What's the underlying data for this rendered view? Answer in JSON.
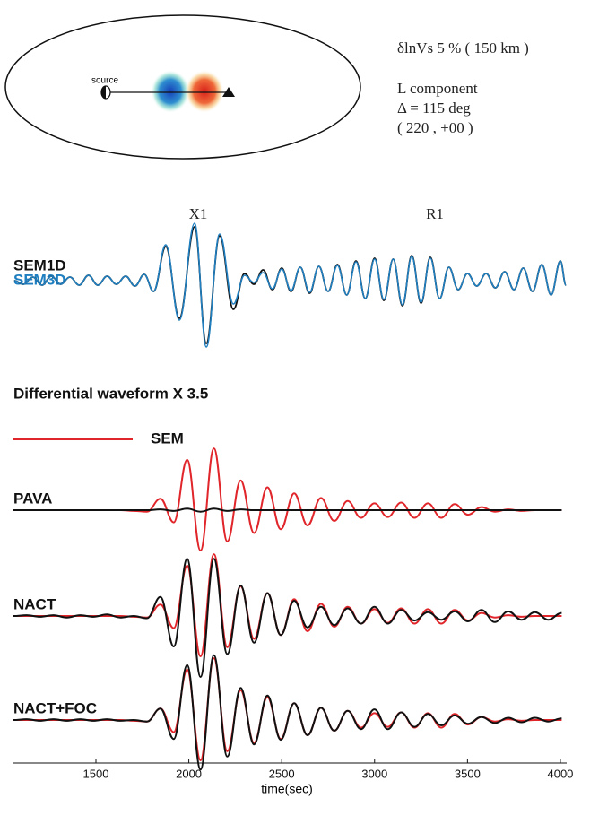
{
  "map": {
    "source_label": "source"
  },
  "annotations": {
    "model": "δlnVs 5 % ( 150 km )",
    "component": "L component",
    "distance": "Δ = 115 deg",
    "location": "( 220 , +00 )"
  },
  "chart_data": [
    {
      "type": "line",
      "phase_labels": [
        "X1",
        "R1"
      ],
      "xlim": [
        1056,
        4034
      ],
      "x": [
        1060,
        1110,
        1160,
        1210,
        1260,
        1310,
        1360,
        1410,
        1460,
        1510,
        1560,
        1610,
        1660,
        1710,
        1760,
        1810,
        1876,
        1949,
        2031,
        2094,
        2166,
        2240,
        2300,
        2350,
        2400,
        2450,
        2500,
        2550,
        2600,
        2650,
        2700,
        2750,
        2800,
        2850,
        2900,
        2950,
        3000,
        3050,
        3100,
        3150,
        3200,
        3250,
        3300,
        3350,
        3400,
        3450,
        3500,
        3550,
        3600,
        3650,
        3700,
        3750,
        3800,
        3850,
        3900,
        3950,
        4000,
        4030
      ],
      "series": [
        {
          "name": "SEM1D",
          "color": "#111111",
          "values": [
            0,
            -4,
            4,
            -5,
            5,
            -4,
            4,
            -5,
            6,
            -5,
            5,
            -4,
            5,
            -6,
            7,
            -12,
            38,
            -42,
            60,
            -70,
            50,
            -32,
            8,
            -4,
            12,
            -10,
            14,
            -12,
            15,
            -14,
            16,
            -12,
            18,
            -16,
            22,
            -20,
            25,
            -22,
            24,
            -28,
            28,
            -25,
            26,
            -20,
            15,
            -10,
            8,
            -6,
            8,
            -8,
            10,
            -10,
            14,
            -12,
            18,
            -16,
            22,
            -5
          ]
        },
        {
          "name": "SEM3D",
          "color": "#1f7fc0",
          "values": [
            0,
            -4,
            4,
            -5,
            5,
            -4,
            4,
            -5,
            6,
            -5,
            5,
            -4,
            5,
            -6,
            7,
            -12,
            40,
            -44,
            64,
            -74,
            52,
            -26,
            6,
            -2,
            9,
            -9,
            13,
            -11,
            15,
            -13,
            16,
            -12,
            17,
            -16,
            21,
            -20,
            24,
            -21,
            24,
            -27,
            27,
            -24,
            25,
            -20,
            15,
            -10,
            8,
            -6,
            8,
            -8,
            10,
            -10,
            14,
            -12,
            18,
            -16,
            22,
            -5
          ]
        }
      ]
    },
    {
      "type": "line",
      "title": "Differential waveform X 3.5",
      "xlabel": "time(sec)",
      "xlim": [
        1056,
        4034
      ],
      "xticks": [
        1500,
        2000,
        2500,
        3000,
        3500,
        4000
      ],
      "x": [
        1055,
        1127,
        1199,
        1271,
        1343,
        1415,
        1487,
        1559,
        1631,
        1703,
        1775,
        1847,
        1919,
        1991,
        2063,
        2135,
        2207,
        2279,
        2351,
        2423,
        2495,
        2567,
        2639,
        2711,
        2783,
        2855,
        2927,
        2999,
        3071,
        3143,
        3215,
        3287,
        3359,
        3431,
        3503,
        3575,
        3647,
        3719,
        3791,
        3863,
        3935,
        4007
      ],
      "series": [
        {
          "name": "SEM",
          "color": "#e0262b",
          "values": [
            0,
            0,
            0,
            0,
            0,
            0,
            0,
            0,
            0,
            -1,
            -2,
            15,
            -16,
            66,
            -53,
            81,
            -41,
            39,
            -30,
            30,
            -25,
            22,
            -20,
            16,
            -14,
            12,
            -10,
            9,
            -9,
            10,
            -10,
            9,
            -10,
            8,
            -6,
            4,
            -2,
            1,
            -1,
            0,
            0,
            0
          ]
        },
        {
          "name": "PAVA",
          "color": "#111111",
          "values": [
            0,
            0,
            0,
            0,
            0,
            0,
            0,
            0,
            0,
            0,
            0,
            1,
            -1,
            2,
            -2,
            2,
            -1,
            1,
            0,
            0,
            0,
            0,
            0,
            0,
            0,
            0,
            0,
            0,
            0,
            0,
            0,
            0,
            0,
            0,
            0,
            0,
            0,
            0,
            0,
            0,
            0,
            0
          ]
        },
        {
          "name": "NACT",
          "color": "#111111",
          "values": [
            0,
            1,
            -1,
            1,
            -2,
            1,
            -1,
            2,
            -2,
            0,
            -3,
            25,
            -40,
            75,
            -80,
            75,
            -50,
            40,
            -35,
            30,
            -25,
            20,
            -15,
            12,
            -12,
            10,
            -10,
            12,
            -10,
            8,
            -6,
            5,
            -5,
            6,
            -7,
            8,
            -8,
            6,
            -5,
            5,
            -5,
            4
          ]
        },
        {
          "name": "NACT+FOC",
          "color": "#111111",
          "values": [
            0,
            1,
            -1,
            1,
            -1,
            1,
            -1,
            1,
            -1,
            0,
            -2,
            15,
            -25,
            72,
            -65,
            85,
            -48,
            42,
            -32,
            32,
            -26,
            22,
            -20,
            16,
            -14,
            12,
            -12,
            14,
            -12,
            10,
            -9,
            8,
            -7,
            6,
            -5,
            4,
            -4,
            3,
            -3,
            3,
            -2,
            2
          ]
        }
      ]
    }
  ]
}
